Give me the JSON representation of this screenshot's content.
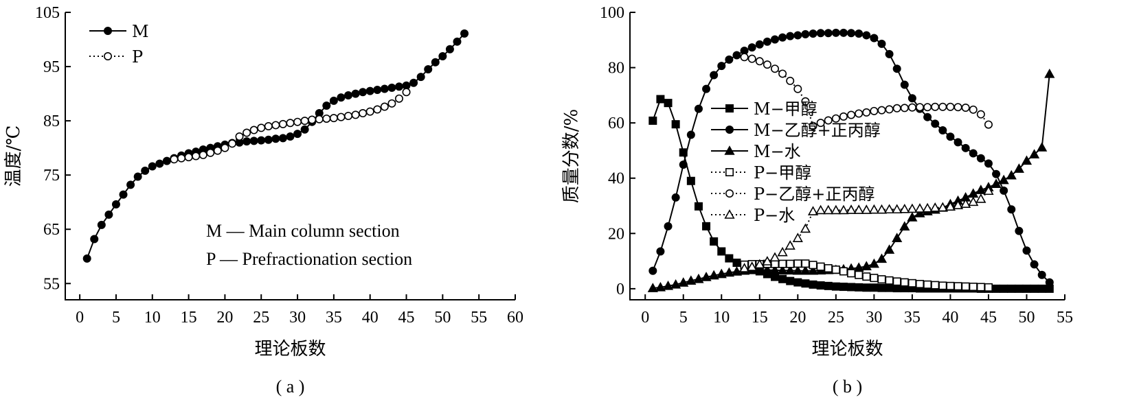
{
  "chart_data": [
    {
      "type": "line",
      "panel_label": "( a )",
      "xlabel": "理论板数",
      "ylabel": "温度/℃",
      "xlim": [
        -2,
        60
      ],
      "ylim": [
        52,
        105
      ],
      "xticks": [
        0,
        5,
        10,
        15,
        20,
        25,
        30,
        35,
        40,
        45,
        50,
        55,
        60
      ],
      "yticks": [
        55,
        65,
        75,
        85,
        95,
        105
      ],
      "legend_position": "top-left",
      "annotations": [
        "M — Main column section",
        "P — Prefractionation section"
      ],
      "series": [
        {
          "name": "M",
          "marker": "filled-circle",
          "line": "solid",
          "x": [
            1,
            2,
            3,
            4,
            5,
            6,
            7,
            8,
            9,
            10,
            11,
            12,
            13,
            14,
            15,
            16,
            17,
            18,
            19,
            20,
            21,
            22,
            23,
            24,
            25,
            26,
            27,
            28,
            29,
            30,
            31,
            32,
            33,
            34,
            35,
            36,
            37,
            38,
            39,
            40,
            41,
            42,
            43,
            44,
            45,
            46,
            47,
            48,
            49,
            50,
            51,
            52,
            53
          ],
          "y": [
            59.6,
            63.2,
            65.8,
            67.7,
            69.6,
            71.4,
            73.2,
            74.7,
            75.8,
            76.6,
            77.1,
            77.6,
            78.1,
            78.6,
            79.0,
            79.3,
            79.7,
            80.0,
            80.3,
            80.6,
            80.9,
            81.0,
            81.2,
            81.3,
            81.4,
            81.5,
            81.7,
            81.8,
            82.1,
            82.6,
            83.4,
            84.8,
            86.4,
            87.8,
            88.7,
            89.3,
            89.7,
            90.0,
            90.3,
            90.5,
            90.7,
            90.9,
            91.1,
            91.3,
            91.5,
            92.0,
            93.1,
            94.5,
            95.8,
            96.9,
            98.2,
            99.6,
            101.1
          ]
        },
        {
          "name": "P",
          "marker": "open-circle",
          "line": "dotted",
          "x": [
            13,
            14,
            15,
            16,
            17,
            18,
            19,
            20,
            21,
            22,
            23,
            24,
            25,
            26,
            27,
            28,
            29,
            30,
            31,
            32,
            33,
            34,
            35,
            36,
            37,
            38,
            39,
            40,
            41,
            42,
            43,
            44,
            45
          ],
          "y": [
            77.9,
            78.1,
            78.3,
            78.5,
            78.7,
            79.1,
            79.5,
            80.0,
            80.8,
            82.1,
            82.8,
            83.3,
            83.7,
            84.0,
            84.2,
            84.4,
            84.6,
            84.8,
            85.0,
            85.2,
            85.3,
            85.4,
            85.5,
            85.7,
            85.9,
            86.1,
            86.4,
            86.7,
            87.1,
            87.6,
            88.2,
            89.1,
            90.3
          ]
        }
      ]
    },
    {
      "type": "line",
      "panel_label": "( b )",
      "xlabel": "理论板数",
      "ylabel": "质量分数/%",
      "xlim": [
        -2,
        55
      ],
      "ylim": [
        -4,
        100
      ],
      "xticks": [
        0,
        5,
        10,
        15,
        20,
        25,
        30,
        35,
        40,
        45,
        50,
        55
      ],
      "yticks": [
        0,
        20,
        40,
        60,
        80,
        100
      ],
      "legend_position": "center-left",
      "series": [
        {
          "name": "M−甲醇",
          "marker": "filled-square",
          "line": "solid",
          "x": [
            1,
            2,
            3,
            4,
            5,
            6,
            7,
            8,
            9,
            10,
            11,
            12,
            13,
            14,
            15,
            16,
            17,
            18,
            19,
            20,
            21,
            22,
            23,
            24,
            25,
            26,
            27,
            28,
            29,
            30,
            31,
            32,
            33,
            34,
            35,
            36,
            37,
            38,
            39,
            40,
            41,
            42,
            43,
            44,
            45,
            46,
            47,
            48,
            49,
            50,
            51,
            52,
            53
          ],
          "y": [
            60.8,
            68.6,
            67.2,
            59.5,
            49.3,
            39.0,
            29.8,
            22.6,
            17.1,
            13.5,
            11.0,
            9.4,
            8.3,
            7.4,
            6.3,
            5.3,
            4.3,
            3.5,
            2.8,
            2.3,
            1.9,
            1.5,
            1.2,
            1.0,
            0.8,
            0.7,
            0.6,
            0.5,
            0.4,
            0.4,
            0.3,
            0.3,
            0.2,
            0.2,
            0.2,
            0.1,
            0.1,
            0.1,
            0.1,
            0.1,
            0.1,
            0.1,
            0.1,
            0.0,
            0.0,
            0.0,
            0.0,
            0.0,
            0.0,
            0.0,
            0.0,
            0.0,
            0.0
          ]
        },
        {
          "name": "M−乙醇+正丙醇",
          "marker": "filled-circle",
          "line": "solid",
          "x": [
            1,
            2,
            3,
            4,
            5,
            6,
            7,
            8,
            9,
            10,
            11,
            12,
            13,
            14,
            15,
            16,
            17,
            18,
            19,
            20,
            21,
            22,
            23,
            24,
            25,
            26,
            27,
            28,
            29,
            30,
            31,
            32,
            33,
            34,
            35,
            36,
            37,
            38,
            39,
            40,
            41,
            42,
            43,
            44,
            45,
            46,
            47,
            48,
            49,
            50,
            51,
            52,
            53
          ],
          "y": [
            6.5,
            13.5,
            22.6,
            33.0,
            44.9,
            55.7,
            65.1,
            72.3,
            77.3,
            80.6,
            82.9,
            84.5,
            86.1,
            87.3,
            88.4,
            89.4,
            90.2,
            90.9,
            91.4,
            91.7,
            92.1,
            92.3,
            92.5,
            92.5,
            92.6,
            92.6,
            92.5,
            92.3,
            91.7,
            90.7,
            88.6,
            84.9,
            79.6,
            73.8,
            68.9,
            65.1,
            62.1,
            59.7,
            57.3,
            55.0,
            53.0,
            50.9,
            49.0,
            47.2,
            45.3,
            41.5,
            35.5,
            28.7,
            20.9,
            13.8,
            8.8,
            5.0,
            2.3
          ]
        },
        {
          "name": "M−水",
          "marker": "filled-triangle",
          "line": "solid",
          "x": [
            1,
            2,
            3,
            4,
            5,
            6,
            7,
            8,
            9,
            10,
            11,
            12,
            13,
            14,
            15,
            16,
            17,
            18,
            19,
            20,
            21,
            22,
            23,
            24,
            25,
            26,
            27,
            28,
            29,
            30,
            31,
            32,
            33,
            34,
            35,
            36,
            37,
            38,
            39,
            40,
            41,
            42,
            43,
            44,
            45,
            46,
            47,
            48,
            49,
            50,
            51,
            52,
            53
          ],
          "y": [
            0.2,
            0.5,
            1.0,
            1.5,
            2.2,
            2.9,
            3.5,
            4.2,
            4.8,
            5.3,
            5.8,
            6.2,
            6.5,
            6.7,
            6.8,
            6.8,
            6.7,
            6.6,
            6.6,
            6.5,
            6.5,
            6.5,
            6.6,
            6.7,
            6.8,
            7.0,
            7.3,
            7.6,
            8.1,
            9.0,
            10.8,
            14.1,
            18.3,
            22.5,
            25.8,
            27.3,
            28.0,
            28.6,
            29.3,
            30.6,
            31.8,
            33.0,
            34.4,
            35.7,
            36.7,
            37.9,
            39.3,
            41.0,
            43.4,
            46.3,
            48.6,
            51.1,
            77.7
          ]
        },
        {
          "name": "P−甲醇",
          "marker": "open-square",
          "line": "dotted",
          "x": [
            13,
            14,
            15,
            16,
            17,
            18,
            19,
            20,
            21,
            22,
            23,
            24,
            25,
            26,
            27,
            28,
            29,
            30,
            31,
            32,
            33,
            34,
            35,
            36,
            37,
            38,
            39,
            40,
            41,
            42,
            43,
            44,
            45
          ],
          "y": [
            8.7,
            8.9,
            8.9,
            9.0,
            9.0,
            9.0,
            9.0,
            9.1,
            9.1,
            8.6,
            8.0,
            7.4,
            6.9,
            6.3,
            5.6,
            5.0,
            4.4,
            3.9,
            3.4,
            3.0,
            2.6,
            2.3,
            2.0,
            1.7,
            1.5,
            1.3,
            1.1,
            1.0,
            0.9,
            0.8,
            0.7,
            0.6,
            0.5
          ]
        },
        {
          "name": "P−乙醇+正丙醇",
          "marker": "open-circle",
          "line": "dotted",
          "x": [
            13,
            14,
            15,
            16,
            17,
            18,
            19,
            20,
            21,
            22,
            23,
            24,
            25,
            26,
            27,
            28,
            29,
            30,
            31,
            32,
            33,
            34,
            35,
            36,
            37,
            38,
            39,
            40,
            41,
            42,
            43,
            44,
            45
          ],
          "y": [
            83.8,
            83.2,
            82.3,
            81.1,
            79.6,
            77.8,
            75.2,
            72.3,
            67.8,
            58.9,
            60.0,
            60.9,
            61.6,
            62.3,
            62.9,
            63.4,
            63.8,
            64.3,
            64.6,
            64.9,
            65.3,
            65.4,
            65.6,
            65.7,
            65.7,
            65.8,
            65.8,
            65.8,
            65.7,
            65.5,
            64.8,
            63.1,
            59.4
          ]
        },
        {
          "name": "P−水",
          "marker": "open-triangle",
          "line": "dotted",
          "x": [
            13,
            14,
            15,
            16,
            17,
            18,
            19,
            20,
            21,
            22,
            23,
            24,
            25,
            26,
            27,
            28,
            29,
            30,
            31,
            32,
            33,
            34,
            35,
            36,
            37,
            38,
            39,
            40,
            41,
            42,
            43,
            44,
            45
          ],
          "y": [
            7.4,
            7.9,
            8.8,
            9.9,
            11.3,
            13.2,
            15.6,
            18.3,
            21.7,
            28.0,
            28.4,
            28.4,
            28.4,
            28.4,
            28.5,
            28.5,
            28.5,
            28.6,
            28.6,
            28.7,
            28.7,
            28.8,
            28.9,
            29.0,
            29.1,
            29.3,
            29.4,
            29.7,
            30.2,
            30.7,
            31.4,
            32.5,
            35.4
          ]
        }
      ]
    }
  ]
}
